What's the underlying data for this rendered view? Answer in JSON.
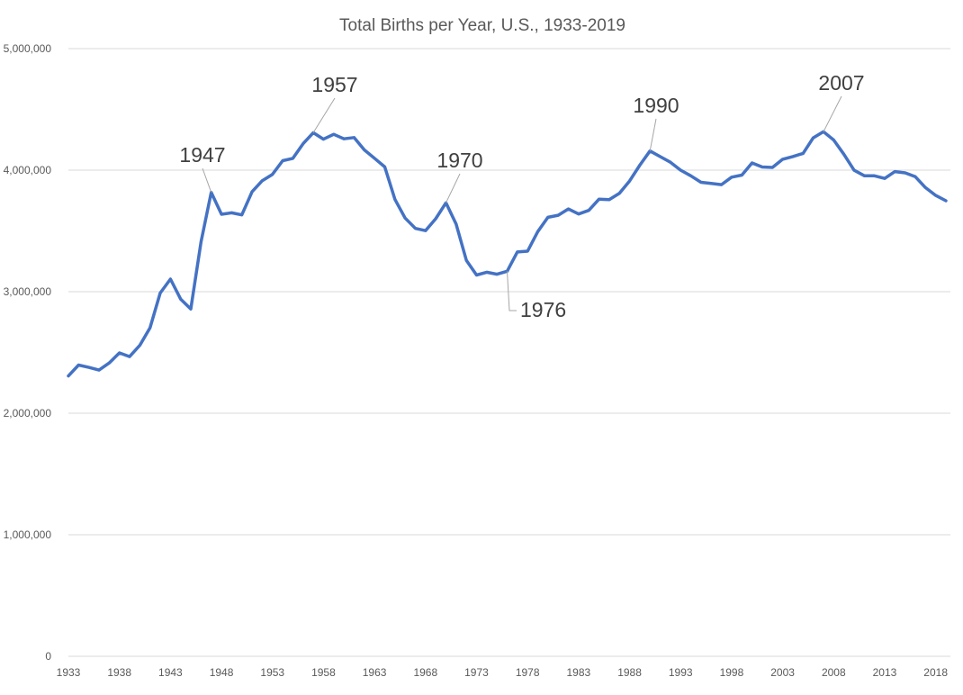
{
  "chart_data": {
    "type": "line",
    "title": "Total Births per Year, U.S., 1933-2019",
    "xlabel": "",
    "ylabel": "",
    "xlim": [
      1933,
      2019
    ],
    "ylim": [
      0,
      5000000
    ],
    "grid": true,
    "legend": "none",
    "line_color": "#4472c4",
    "y_ticks": [
      "0",
      "1,000,000",
      "2,000,000",
      "3,000,000",
      "4,000,000",
      "5,000,000"
    ],
    "y_tick_values": [
      0,
      1000000,
      2000000,
      3000000,
      4000000,
      5000000
    ],
    "x_ticks": [
      "1933",
      "1938",
      "1943",
      "1948",
      "1953",
      "1958",
      "1963",
      "1968",
      "1973",
      "1978",
      "1983",
      "1988",
      "1993",
      "1998",
      "2003",
      "2008",
      "2013",
      "2018"
    ],
    "x": [
      1933,
      1934,
      1935,
      1936,
      1937,
      1938,
      1939,
      1940,
      1941,
      1942,
      1943,
      1944,
      1945,
      1946,
      1947,
      1948,
      1949,
      1950,
      1951,
      1952,
      1953,
      1954,
      1955,
      1956,
      1957,
      1958,
      1959,
      1960,
      1961,
      1962,
      1963,
      1964,
      1965,
      1966,
      1967,
      1968,
      1969,
      1970,
      1971,
      1972,
      1973,
      1974,
      1975,
      1976,
      1977,
      1978,
      1979,
      1980,
      1981,
      1982,
      1983,
      1984,
      1985,
      1986,
      1987,
      1988,
      1989,
      1990,
      1991,
      1992,
      1993,
      1994,
      1995,
      1996,
      1997,
      1998,
      1999,
      2000,
      2001,
      2002,
      2003,
      2004,
      2005,
      2006,
      2007,
      2008,
      2009,
      2010,
      2011,
      2012,
      2013,
      2014,
      2015,
      2016,
      2017,
      2018,
      2019
    ],
    "series": [
      {
        "values": [
          2307000,
          2396000,
          2377000,
          2355000,
          2413000,
          2496000,
          2466000,
          2559000,
          2703000,
          2989000,
          3104000,
          2939000,
          2858000,
          3411000,
          3817000,
          3637000,
          3649000,
          3632000,
          3823000,
          3913000,
          3965000,
          4078000,
          4097000,
          4218000,
          4308000,
          4255000,
          4295000,
          4258000,
          4268000,
          4167000,
          4098000,
          4027000,
          3760000,
          3606000,
          3521000,
          3502000,
          3600000,
          3731000,
          3556000,
          3258000,
          3137000,
          3160000,
          3144000,
          3168000,
          3327000,
          3333000,
          3494000,
          3612000,
          3629000,
          3681000,
          3639000,
          3669000,
          3761000,
          3757000,
          3809000,
          3910000,
          4041000,
          4158000,
          4111000,
          4065000,
          4000000,
          3953000,
          3900000,
          3891000,
          3881000,
          3942000,
          3959000,
          4059000,
          4026000,
          4022000,
          4090000,
          4112000,
          4138000,
          4266000,
          4316000,
          4248000,
          4131000,
          3999000,
          3954000,
          3953000,
          3932000,
          3988000,
          3978000,
          3946000,
          3856000,
          3792000,
          3748000
        ]
      }
    ],
    "annotations": [
      {
        "label": "1947",
        "year": 1947
      },
      {
        "label": "1957",
        "year": 1957
      },
      {
        "label": "1970",
        "year": 1970
      },
      {
        "label": "1976",
        "year": 1976
      },
      {
        "label": "1990",
        "year": 1990
      },
      {
        "label": "2007",
        "year": 2007
      }
    ]
  }
}
